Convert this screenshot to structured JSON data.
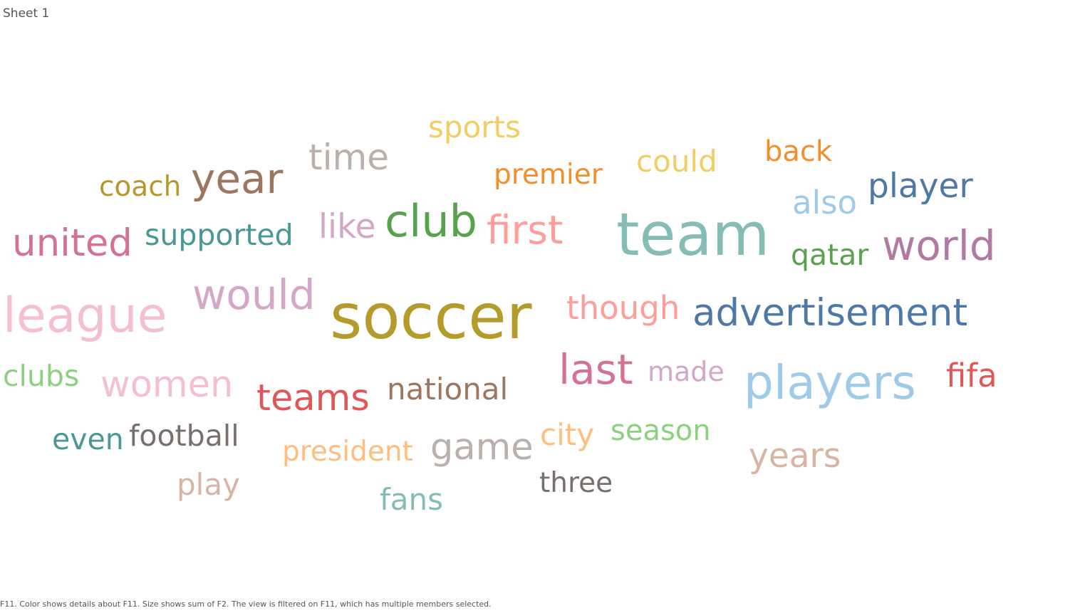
{
  "sheet": {
    "title": "Sheet 1"
  },
  "caption": "F11.  Color shows details about F11.  Size shows sum of F2. The view is filtered on F11, which has multiple members selected.",
  "chart_data": {
    "type": "word-cloud",
    "color_field": "F11",
    "size_field": "F2",
    "words": [
      {
        "text": "soccer",
        "size": 87,
        "color": "#b59a2c"
      },
      {
        "text": "team",
        "size": 83,
        "color": "#86bcb6"
      },
      {
        "text": "league",
        "size": 68,
        "color": "#f5bfd2"
      },
      {
        "text": "players",
        "size": 66,
        "color": "#a0cbe8"
      },
      {
        "text": "club",
        "size": 62,
        "color": "#59a14f"
      },
      {
        "text": "would",
        "size": 58,
        "color": "#d4a6c8"
      },
      {
        "text": "world",
        "size": 58,
        "color": "#b07aa1"
      },
      {
        "text": "last",
        "size": 58,
        "color": "#d37295"
      },
      {
        "text": "year",
        "size": 58,
        "color": "#9d7660"
      },
      {
        "text": "first",
        "size": 55,
        "color": "#ff9d9a"
      },
      {
        "text": "united",
        "size": 53,
        "color": "#d37295"
      },
      {
        "text": "advertisement",
        "size": 53,
        "color": "#4e79a7"
      },
      {
        "text": "women",
        "size": 51,
        "color": "#f5bfd2"
      },
      {
        "text": "game",
        "size": 51,
        "color": "#bab0ac"
      },
      {
        "text": "teams",
        "size": 51,
        "color": "#e15759"
      },
      {
        "text": "time",
        "size": 50,
        "color": "#bab0ac"
      },
      {
        "text": "player",
        "size": 47,
        "color": "#4e79a7"
      },
      {
        "text": "years",
        "size": 47,
        "color": "#d7b5a6"
      },
      {
        "text": "like",
        "size": 47,
        "color": "#d4a6c8"
      },
      {
        "text": "also",
        "size": 45,
        "color": "#a0cbe8"
      },
      {
        "text": "though",
        "size": 45,
        "color": "#ff9d9a"
      },
      {
        "text": "fifa",
        "size": 45,
        "color": "#e15759"
      },
      {
        "text": "sports",
        "size": 42,
        "color": "#f1ce63"
      },
      {
        "text": "could",
        "size": 42,
        "color": "#f1ce63"
      },
      {
        "text": "national",
        "size": 42,
        "color": "#9d7660"
      },
      {
        "text": "city",
        "size": 42,
        "color": "#ffbe7d"
      },
      {
        "text": "play",
        "size": 42,
        "color": "#d7b5a6"
      },
      {
        "text": "fans",
        "size": 42,
        "color": "#86bcb6"
      },
      {
        "text": "clubs",
        "size": 41,
        "color": "#8cd17d"
      },
      {
        "text": "supported",
        "size": 41,
        "color": "#499894"
      },
      {
        "text": "even",
        "size": 41,
        "color": "#499894"
      },
      {
        "text": "football",
        "size": 41,
        "color": "#79706e"
      },
      {
        "text": "qatar",
        "size": 41,
        "color": "#59a14f"
      },
      {
        "text": "season",
        "size": 40,
        "color": "#8cd17d"
      },
      {
        "text": "back",
        "size": 40,
        "color": "#f28e2b"
      },
      {
        "text": "coach",
        "size": 39,
        "color": "#b6992d"
      },
      {
        "text": "president",
        "size": 39,
        "color": "#ffbe7d"
      },
      {
        "text": "premier",
        "size": 39,
        "color": "#f28e2b"
      },
      {
        "text": "three",
        "size": 39,
        "color": "#79706e"
      },
      {
        "text": "made",
        "size": 38,
        "color": "#d4a6c8"
      }
    ]
  }
}
